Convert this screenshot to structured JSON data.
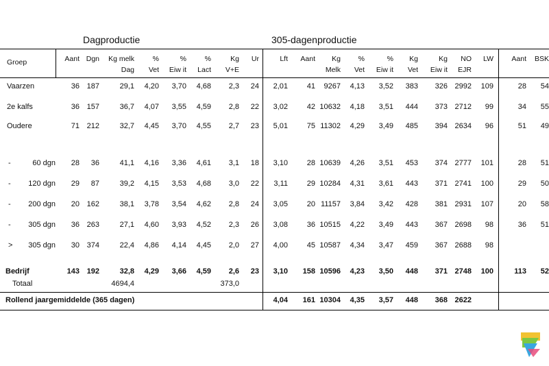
{
  "titles": {
    "dagproductie": "Dagproductie",
    "dagen305": "305-dagenproductie"
  },
  "headers": {
    "groep": "Groep",
    "aant": "Aant",
    "dgn": "Dgn",
    "kgmelk1": "Kg melk",
    "kgmelk2": "Dag",
    "vet1": "%",
    "vet2": "Vet",
    "eiwit1": "%",
    "eiwit2": "Eiw it",
    "lact1": "%",
    "lact2": "Lact",
    "kgve1": "Kg",
    "kgve2": "V+E",
    "ur": "Ur",
    "lft": "Lft",
    "aant305": "Aant",
    "kgm1": "Kg",
    "kgm2": "Melk",
    "vet305a": "%",
    "vet305b": "Vet",
    "eiw305a": "%",
    "eiw305b": "Eiw it",
    "kgvet1": "Kg",
    "kgvet2": "Vet",
    "kgeiw1": "Kg",
    "kgeiw2": "Eiw it",
    "no1": "NO",
    "no2": "EJR",
    "lw": "LW",
    "aant3": "Aant",
    "bsk": "BSK"
  },
  "rows": [
    {
      "label": "Vaarzen",
      "v": [
        "36",
        "187",
        "29,1",
        "4,20",
        "3,70",
        "4,68",
        "2,3",
        "24",
        "2,01",
        "41",
        "9267",
        "4,13",
        "3,52",
        "383",
        "326",
        "2992",
        "109",
        "28",
        "54"
      ]
    },
    {
      "label": "2e kalfs",
      "v": [
        "36",
        "157",
        "36,7",
        "4,07",
        "3,55",
        "4,59",
        "2,8",
        "22",
        "3,02",
        "42",
        "10632",
        "4,18",
        "3,51",
        "444",
        "373",
        "2712",
        "99",
        "34",
        "55"
      ]
    },
    {
      "label": "Oudere",
      "v": [
        "71",
        "212",
        "32,7",
        "4,45",
        "3,70",
        "4,55",
        "2,7",
        "23",
        "5,01",
        "75",
        "11302",
        "4,29",
        "3,49",
        "485",
        "394",
        "2634",
        "96",
        "51",
        "49"
      ]
    },
    {
      "prefix": "-",
      "label": "60 dgn",
      "v": [
        "28",
        "36",
        "41,1",
        "4,16",
        "3,36",
        "4,61",
        "3,1",
        "18",
        "3,10",
        "28",
        "10639",
        "4,26",
        "3,51",
        "453",
        "374",
        "2777",
        "101",
        "28",
        "51"
      ]
    },
    {
      "prefix": "-",
      "label": "120 dgn",
      "v": [
        "29",
        "87",
        "39,2",
        "4,15",
        "3,53",
        "4,68",
        "3,0",
        "22",
        "3,11",
        "29",
        "10284",
        "4,31",
        "3,61",
        "443",
        "371",
        "2741",
        "100",
        "29",
        "50"
      ]
    },
    {
      "prefix": "-",
      "label": "200 dgn",
      "v": [
        "20",
        "162",
        "38,1",
        "3,78",
        "3,54",
        "4,62",
        "2,8",
        "24",
        "3,05",
        "20",
        "11157",
        "3,84",
        "3,42",
        "428",
        "381",
        "2931",
        "107",
        "20",
        "58"
      ]
    },
    {
      "prefix": "-",
      "label": "305 dgn",
      "v": [
        "36",
        "263",
        "27,1",
        "4,60",
        "3,93",
        "4,52",
        "2,3",
        "26",
        "3,08",
        "36",
        "10515",
        "4,22",
        "3,49",
        "443",
        "367",
        "2698",
        "98",
        "36",
        "51"
      ]
    },
    {
      "prefix": ">",
      "label": "305 dgn",
      "v": [
        "30",
        "374",
        "22,4",
        "4,86",
        "4,14",
        "4,45",
        "2,0",
        "27",
        "4,00",
        "45",
        "10587",
        "4,34",
        "3,47",
        "459",
        "367",
        "2688",
        "98",
        "",
        ""
      ]
    }
  ],
  "bedrijf": {
    "label": "Bedrijf",
    "v": [
      "143",
      "192",
      "32,8",
      "4,29",
      "3,66",
      "4,59",
      "2,6",
      "23",
      "3,10",
      "158",
      "10596",
      "4,23",
      "3,50",
      "448",
      "371",
      "2748",
      "100",
      "113",
      "52"
    ]
  },
  "totaal": {
    "label": "Totaal",
    "kgmelk": "4694,4",
    "kgve": "373,0"
  },
  "rollend": {
    "label": "Rollend jaargemiddelde (365 dagen)",
    "v": [
      "4,04",
      "161",
      "10304",
      "4,35",
      "3,57",
      "448",
      "368",
      "2622"
    ]
  },
  "logo": {
    "icon": "bsk-logo-icon",
    "colors": [
      "#f2c230",
      "#7ec843",
      "#3aa7e0",
      "#e84c7d"
    ]
  }
}
